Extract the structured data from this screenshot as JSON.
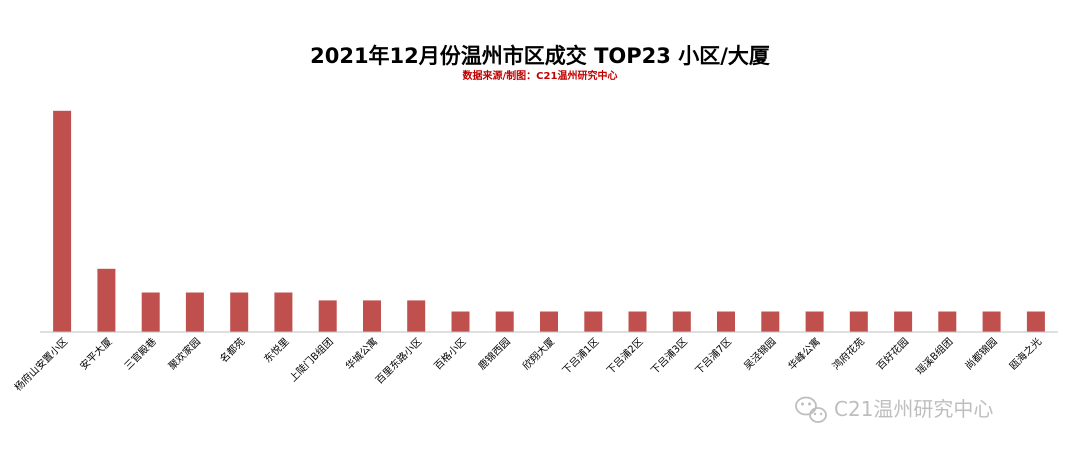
{
  "chart_data": {
    "type": "bar",
    "title": "2021年12月份温州市区成交 TOP23 小区/大厦",
    "subtitle": "数据来源/制图：C21温州研究中心",
    "categories": [
      "杨府山安置小区",
      "安平大厦",
      "三官殿巷",
      "聚欢家园",
      "名都苑",
      "东悦里",
      "上陡门B组团",
      "华城公寓",
      "百里东路小区",
      "百格小区",
      "鹿锦西园",
      "欣翔大厦",
      "下吕浦1区",
      "下吕浦2区",
      "下吕浦3区",
      "下吕浦7区",
      "吴泾锦园",
      "华峰公寓",
      "鸿府花苑",
      "百好花园",
      "瑶溪B组团",
      "尚都锦园",
      "瓯海之光"
    ],
    "values": [
      14,
      4,
      2.5,
      2.5,
      2.5,
      2.5,
      2,
      2,
      2,
      1.3,
      1.3,
      1.3,
      1.3,
      1.3,
      1.3,
      1.3,
      1.3,
      1.3,
      1.3,
      1.3,
      1.3,
      1.3,
      1.3
    ],
    "ylim": [
      0,
      15
    ],
    "xlabel": "",
    "ylabel": "",
    "grid": false,
    "bar_color": "#c0504d"
  },
  "watermark": {
    "icon": "wechat-icon",
    "text": "C21温州研究中心"
  },
  "colors": {
    "subtitle": "#c00000",
    "axis": "#bfbfbf"
  }
}
